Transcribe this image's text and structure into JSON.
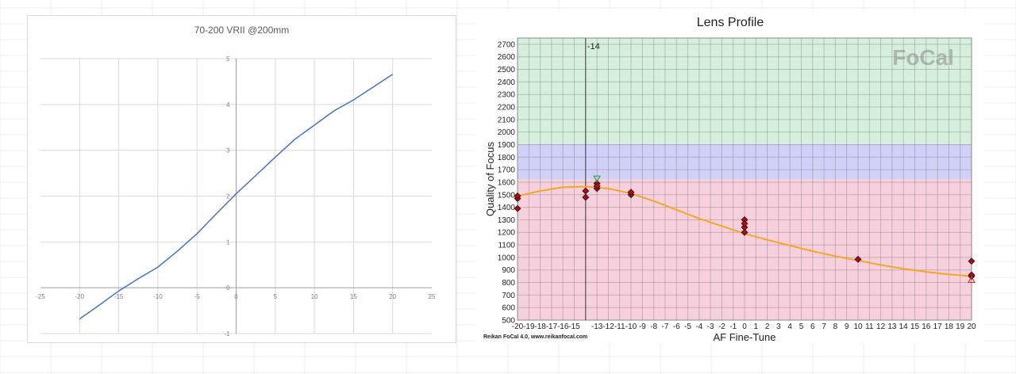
{
  "chart_data": [
    {
      "type": "line",
      "title": "70-200 VRII @200mm",
      "xlim": [
        -25,
        25
      ],
      "ylim": [
        -1,
        5
      ],
      "x_ticks": [
        "-25",
        "-20",
        "-15",
        "-10",
        "-5",
        "0",
        "5",
        "10",
        "15",
        "20",
        "25"
      ],
      "y_ticks": [
        "-1",
        "0",
        "1",
        "2",
        "3",
        "4",
        "5"
      ],
      "grid": true,
      "series": [
        {
          "color": "#4472c4",
          "x": [
            -20,
            -17.5,
            -15,
            -12.5,
            -10,
            -7.5,
            -5,
            -2.5,
            0,
            2.5,
            5,
            7.5,
            10,
            12.5,
            15,
            17.5,
            20
          ],
          "y": [
            -0.68,
            -0.38,
            -0.07,
            0.2,
            0.45,
            0.8,
            1.18,
            1.62,
            2.05,
            2.45,
            2.85,
            3.24,
            3.55,
            3.86,
            4.1,
            4.38,
            4.66
          ]
        }
      ]
    },
    {
      "type": "scatter",
      "title": "Lens Profile",
      "xlabel": "AF Fine-Tune",
      "ylabel": "Quality of Focus",
      "xlim": [
        -20,
        20
      ],
      "ylim": [
        500,
        2750
      ],
      "x_ticks": [
        "-20",
        "-19",
        "-18",
        "-17",
        "-16",
        "-15",
        "-13",
        "-12",
        "-11",
        "-10",
        "-9",
        "-8",
        "-7",
        "-6",
        "-5",
        "-4",
        "-3",
        "-2",
        "-1",
        "0",
        "1",
        "2",
        "3",
        "4",
        "5",
        "6",
        "7",
        "8",
        "9",
        "10",
        "11",
        "12",
        "13",
        "14",
        "15",
        "16",
        "17",
        "18",
        "19",
        "20"
      ],
      "y_ticks": [
        "500",
        "600",
        "700",
        "800",
        "900",
        "1000",
        "1100",
        "1200",
        "1300",
        "1400",
        "1500",
        "1600",
        "1700",
        "1800",
        "1900",
        "2000",
        "2100",
        "2200",
        "2300",
        "2400",
        "2500",
        "2600",
        "2700"
      ],
      "bands": [
        {
          "from": 500,
          "to": 1625,
          "color": "#f6d0dc"
        },
        {
          "from": 1625,
          "to": 1905,
          "color": "#d0d0f8"
        },
        {
          "from": 1905,
          "to": 2750,
          "color": "#d6efdc"
        }
      ],
      "marker_label": "-14",
      "marker_x": -14,
      "points": [
        {
          "x": -20,
          "y": 1470
        },
        {
          "x": -20,
          "y": 1490
        },
        {
          "x": -20,
          "y": 1390
        },
        {
          "x": -14,
          "y": 1480
        },
        {
          "x": -14,
          "y": 1530
        },
        {
          "x": -13,
          "y": 1550
        },
        {
          "x": -13,
          "y": 1590
        },
        {
          "x": -13,
          "y": 1570
        },
        {
          "x": -10,
          "y": 1500
        },
        {
          "x": -10,
          "y": 1520
        },
        {
          "x": 0,
          "y": 1300
        },
        {
          "x": 0,
          "y": 1240
        },
        {
          "x": 0,
          "y": 1200
        },
        {
          "x": 0,
          "y": 1270
        },
        {
          "x": 10,
          "y": 985
        },
        {
          "x": 20,
          "y": 970
        },
        {
          "x": 20,
          "y": 850
        },
        {
          "x": 20,
          "y": 860
        }
      ],
      "fit_curve": {
        "color": "#f5a623",
        "x": [
          -20,
          -18,
          -16,
          -14,
          -12,
          -10,
          -8,
          -6,
          -4,
          -2,
          0,
          2,
          4,
          6,
          8,
          10,
          12,
          14,
          16,
          18,
          20
        ],
        "y": [
          1490,
          1530,
          1560,
          1565,
          1550,
          1510,
          1450,
          1380,
          1310,
          1250,
          1190,
          1140,
          1095,
          1050,
          1010,
          975,
          940,
          910,
          885,
          865,
          850
        ]
      },
      "max_marker": {
        "x": -13,
        "y": 1630,
        "color": "#2eaa2e"
      },
      "min_marker": {
        "x": 20,
        "y": 820,
        "color": "#e03030"
      },
      "logo_text": "FoCal",
      "credit": "Reikan FoCal 4.0, www.reikanfocal.com"
    }
  ]
}
